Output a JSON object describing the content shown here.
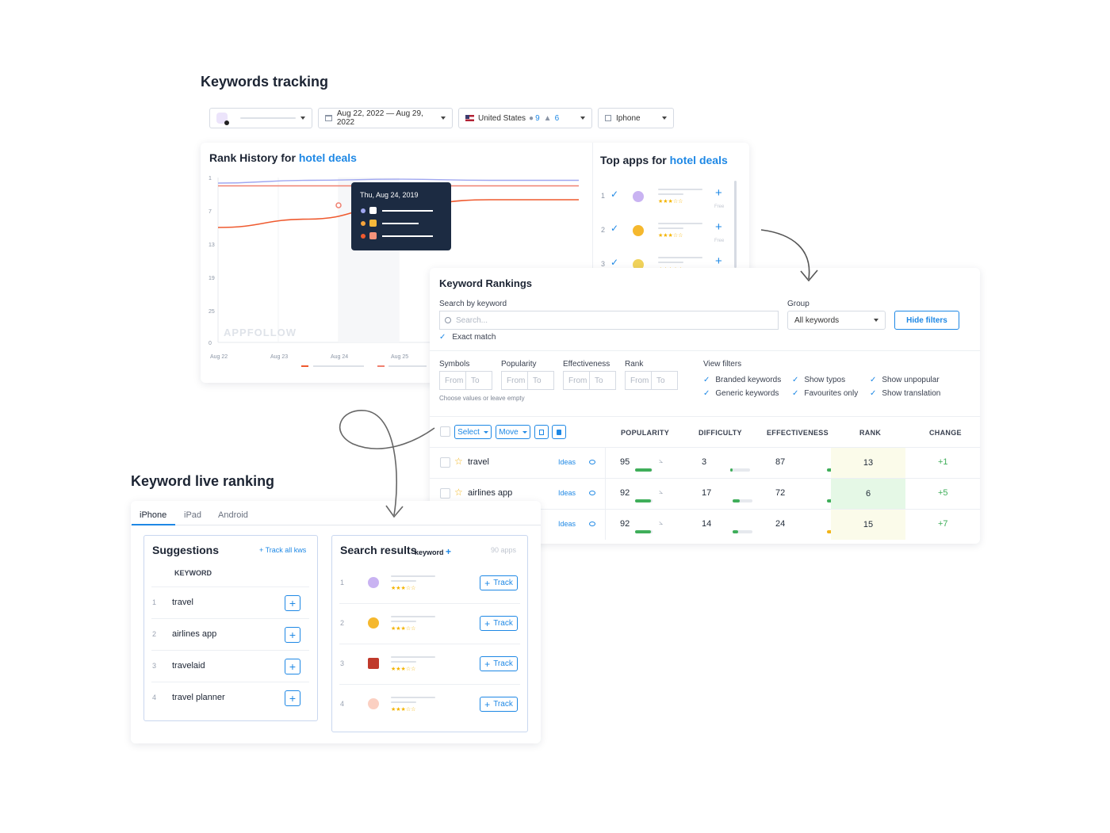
{
  "header": {
    "title": "Keywords tracking"
  },
  "filters": {
    "date_range": "Aug 22, 2022 — Aug 29, 2022",
    "country": "United States",
    "ios_count": "9",
    "android_count": "6",
    "device": "Iphone"
  },
  "rank_history": {
    "title_prefix": "Rank History for",
    "keyword": "hotel deals",
    "watermark": "APPFOLLOW",
    "tooltip_date": "Thu, Aug 24, 2019",
    "series_colors": [
      "#a0a7f0",
      "#f08070",
      "#ef5a2f"
    ],
    "chart_data": {
      "type": "line",
      "x": [
        "Aug 22",
        "Aug 23",
        "Aug 24",
        "Aug 25"
      ],
      "y_ticks": [
        "1",
        "7",
        "13",
        "19",
        "25",
        "0"
      ],
      "series": [
        {
          "values": [
            2,
            1.5,
            1.3,
            1.5
          ]
        },
        {
          "values": [
            2.5,
            2.5,
            2.5,
            2.5
          ]
        },
        {
          "values": [
            10,
            8.5,
            6,
            5
          ]
        }
      ]
    }
  },
  "top_apps": {
    "title_prefix": "Top apps for",
    "keyword": "hotel deals",
    "items": [
      {
        "rank": "1",
        "price": "Free",
        "color": "#ece4fb"
      },
      {
        "rank": "2",
        "price": "Free",
        "color": "#6b3fa0"
      },
      {
        "rank": "3",
        "price": "",
        "color": "#f5b82e"
      }
    ]
  },
  "keyword_rankings": {
    "title": "Keyword Rankings",
    "search_label": "Search by keyword",
    "search_placeholder": "Search...",
    "group_label": "Group",
    "group_value": "All keywords",
    "hide_filters": "Hide filters",
    "exact_match": "Exact match",
    "range_filters": [
      {
        "label": "Symbols",
        "from": "From",
        "to": "To"
      },
      {
        "label": "Popularity",
        "from": "From",
        "to": "To"
      },
      {
        "label": "Effectiveness",
        "from": "From",
        "to": "To"
      },
      {
        "label": "Rank",
        "from": "From",
        "to": "To"
      }
    ],
    "hint": "Choose values or leave empty",
    "view_filters_label": "View filters",
    "view_filters": [
      "Branded keywords",
      "Generic keywords",
      "Show typos",
      "Favourites only",
      "Show unpopular",
      "Show translation"
    ],
    "toolbar": {
      "select": "Select",
      "move": "Move"
    },
    "columns": {
      "popularity": "POPULARITY",
      "difficulty": "DIFFICULTY",
      "effectiveness": "EFFECTIVENESS",
      "rank": "RANK",
      "change": "CHANGE"
    },
    "ideas_label": "Ideas",
    "rows": [
      {
        "keyword": "travel",
        "popularity": "95",
        "pop_pct": 0.95,
        "difficulty": "3",
        "diff_pct": 0.03,
        "effectiveness": "87",
        "eff_pct": 0.87,
        "eff_color": "#3fae5a",
        "rank": "13",
        "rank_bg": "#fbfbea",
        "change": "+1"
      },
      {
        "keyword": "airlines app",
        "popularity": "92",
        "pop_pct": 0.92,
        "difficulty": "17",
        "diff_pct": 0.17,
        "effectiveness": "72",
        "eff_pct": 0.72,
        "eff_color": "#3fae5a",
        "rank": "6",
        "rank_bg": "#e5f8e6",
        "change": "+5"
      },
      {
        "keyword": "",
        "popularity": "92",
        "pop_pct": 0.92,
        "difficulty": "14",
        "diff_pct": 0.14,
        "effectiveness": "24",
        "eff_pct": 0.24,
        "eff_color": "#f2b418",
        "rank": "15",
        "rank_bg": "#fbfbea",
        "change": "+7"
      }
    ]
  },
  "live_ranking": {
    "title": "Keyword live ranking",
    "tabs": [
      "iPhone",
      "iPad",
      "Android"
    ],
    "suggestions": {
      "title": "Suggestions",
      "track_all": "+ Track all kws",
      "column": "KEYWORD",
      "items": [
        {
          "n": "1",
          "keyword": "travel"
        },
        {
          "n": "2",
          "keyword": "airlines app"
        },
        {
          "n": "3",
          "keyword": "travelaid"
        },
        {
          "n": "4",
          "keyword": "travel planner"
        }
      ]
    },
    "search_results": {
      "title": "Search results",
      "keyword": "keyword",
      "count": "90 apps",
      "track_label": "Track",
      "items": [
        {
          "n": "1",
          "color": "#ece4fb"
        },
        {
          "n": "2",
          "color": "#6b3fa0"
        },
        {
          "n": "3",
          "color": "#f5b82e"
        },
        {
          "n": "4",
          "color": "#f6937b"
        }
      ]
    }
  }
}
